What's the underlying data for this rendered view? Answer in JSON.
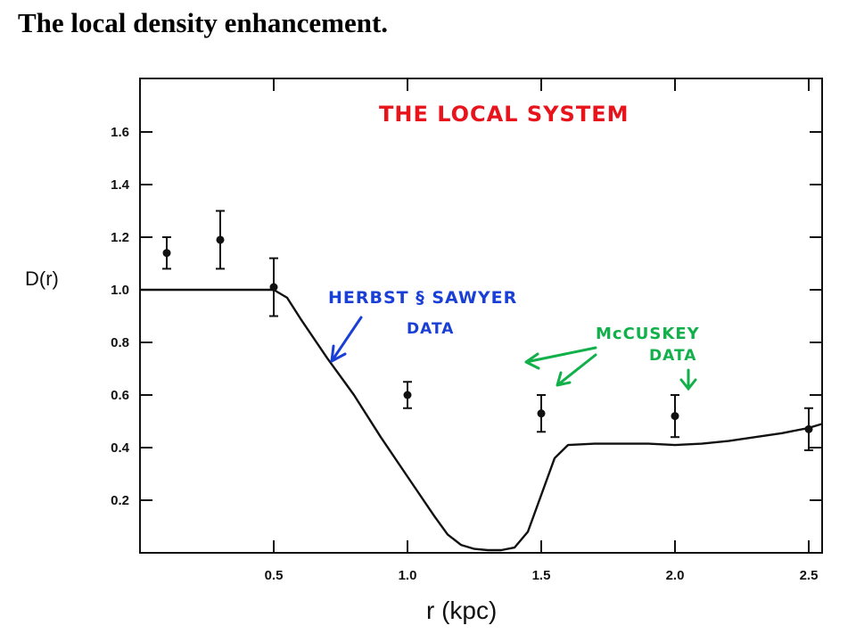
{
  "slide_title": "The local density enhancement.",
  "chart_data": {
    "type": "scatter",
    "title": "THE LOCAL SYSTEM",
    "xlabel": "r (kpc)",
    "ylabel": "D(r)",
    "xlim": [
      0,
      2.55
    ],
    "ylim": [
      0,
      1.8
    ],
    "xticks": [
      0.5,
      1.0,
      1.5,
      2.0,
      2.5
    ],
    "xtick_labels": [
      "0.5",
      "1.0",
      "1.5",
      "2.0",
      "2.5"
    ],
    "yticks": [
      0.2,
      0.4,
      0.6,
      0.8,
      1.0,
      1.2,
      1.4,
      1.6
    ],
    "ytick_labels": [
      "0.2",
      "0.4",
      "0.6",
      "0.8",
      "1.0",
      "1.2",
      "1.4",
      "1.6"
    ],
    "points": {
      "x": [
        0.1,
        0.3,
        0.5,
        1.0,
        1.5,
        2.0,
        2.5
      ],
      "y": [
        1.14,
        1.19,
        1.01,
        0.6,
        0.53,
        0.52,
        0.47
      ],
      "err_low": [
        1.08,
        1.08,
        0.9,
        0.55,
        0.46,
        0.44,
        0.39
      ],
      "err_high": [
        1.2,
        1.3,
        1.12,
        0.65,
        0.6,
        0.6,
        0.55
      ]
    },
    "model_curve": {
      "x": [
        0.0,
        0.5,
        0.55,
        0.6,
        0.7,
        0.8,
        0.9,
        1.0,
        1.1,
        1.15,
        1.2,
        1.25,
        1.3,
        1.35,
        1.4,
        1.45,
        1.5,
        1.55,
        1.6,
        1.7,
        1.8,
        1.9,
        2.0,
        2.1,
        2.2,
        2.3,
        2.4,
        2.5,
        2.55
      ],
      "y": [
        1.0,
        1.0,
        0.97,
        0.89,
        0.74,
        0.6,
        0.44,
        0.29,
        0.14,
        0.07,
        0.03,
        0.015,
        0.01,
        0.01,
        0.02,
        0.08,
        0.22,
        0.36,
        0.41,
        0.415,
        0.415,
        0.415,
        0.41,
        0.415,
        0.425,
        0.44,
        0.455,
        0.475,
        0.49
      ]
    },
    "annotations": [
      {
        "text_lines": [
          "HERBST § SAWYER",
          "DATA"
        ]
      },
      {
        "text_lines": [
          "McCUSKEY",
          "DATA"
        ]
      }
    ],
    "colors": {
      "title": "#e8141c",
      "herbst_sawyer": "#1a3fd6",
      "mccuskey": "#12b04a",
      "ink": "#111111"
    }
  }
}
